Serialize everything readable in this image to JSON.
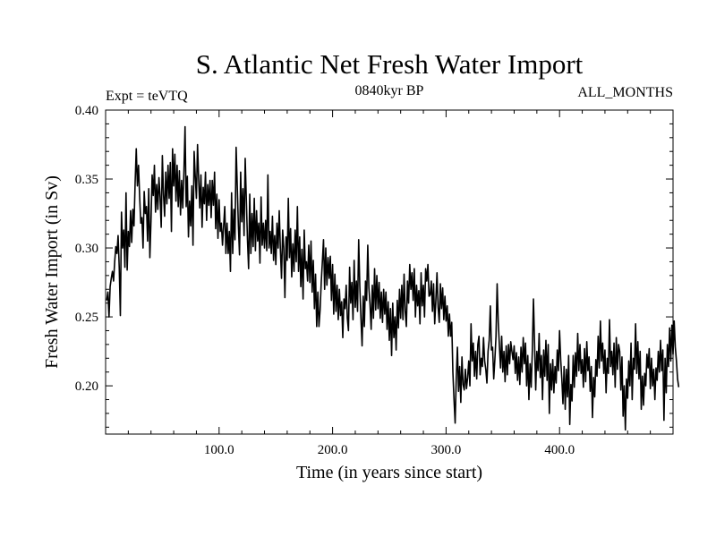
{
  "chart_data": {
    "type": "line",
    "title": "S. Atlantic Net Fresh Water Import",
    "subtitle_left": "Expt = teVTQ",
    "subtitle_center": "0840kyr BP",
    "subtitle_right": "ALL_MONTHS",
    "xlabel": "Time (in years since start)",
    "ylabel": "Fresh Water Import (in Sv)",
    "xlim": [
      0,
      500
    ],
    "ylim": [
      0.165,
      0.4
    ],
    "xticks_major": [
      100,
      200,
      300,
      400
    ],
    "xtick_labels": [
      "100.0",
      "200.0",
      "300.0",
      "400.0"
    ],
    "yticks_major": [
      0.2,
      0.25,
      0.3,
      0.35,
      0.4
    ],
    "ytick_labels": [
      "0.20",
      "0.25",
      "0.30",
      "0.35",
      "0.40"
    ],
    "series": [
      {
        "name": "S. Atlantic net fresh water import",
        "x_start": 1,
        "x_step": 1,
        "values": [
          0.262,
          0.268,
          0.25,
          0.272,
          0.278,
          0.283,
          0.276,
          0.29,
          0.301,
          0.296,
          0.309,
          0.286,
          0.251,
          0.326,
          0.3,
          0.313,
          0.286,
          0.34,
          0.284,
          0.312,
          0.301,
          0.327,
          0.304,
          0.328,
          0.316,
          0.347,
          0.372,
          0.345,
          0.36,
          0.337,
          0.318,
          0.322,
          0.3,
          0.341,
          0.325,
          0.33,
          0.305,
          0.343,
          0.293,
          0.32,
          0.353,
          0.338,
          0.36,
          0.326,
          0.346,
          0.328,
          0.351,
          0.337,
          0.315,
          0.367,
          0.339,
          0.323,
          0.355,
          0.332,
          0.36,
          0.336,
          0.362,
          0.312,
          0.372,
          0.345,
          0.368,
          0.334,
          0.36,
          0.33,
          0.356,
          0.324,
          0.349,
          0.329,
          0.355,
          0.388,
          0.33,
          0.352,
          0.308,
          0.334,
          0.316,
          0.345,
          0.302,
          0.37,
          0.352,
          0.336,
          0.375,
          0.35,
          0.329,
          0.353,
          0.315,
          0.344,
          0.332,
          0.355,
          0.32,
          0.346,
          0.331,
          0.349,
          0.322,
          0.349,
          0.331,
          0.355,
          0.314,
          0.339,
          0.307,
          0.335,
          0.312,
          0.318,
          0.302,
          0.316,
          0.33,
          0.296,
          0.318,
          0.296,
          0.312,
          0.283,
          0.34,
          0.296,
          0.328,
          0.306,
          0.373,
          0.345,
          0.316,
          0.295,
          0.355,
          0.319,
          0.343,
          0.309,
          0.365,
          0.335,
          0.306,
          0.285,
          0.339,
          0.296,
          0.325,
          0.301,
          0.336,
          0.298,
          0.327,
          0.305,
          0.318,
          0.289,
          0.337,
          0.302,
          0.318,
          0.3,
          0.32,
          0.298,
          0.353,
          0.3,
          0.312,
          0.296,
          0.323,
          0.291,
          0.309,
          0.288,
          0.318,
          0.3,
          0.327,
          0.299,
          0.278,
          0.313,
          0.3,
          0.264,
          0.308,
          0.291,
          0.336,
          0.293,
          0.314,
          0.279,
          0.303,
          0.283,
          0.313,
          0.29,
          0.33,
          0.283,
          0.308,
          0.272,
          0.299,
          0.263,
          0.313,
          0.285,
          0.29,
          0.276,
          0.302,
          0.275,
          0.305,
          0.268,
          0.291,
          0.256,
          0.281,
          0.243,
          0.268,
          0.243,
          0.255,
          0.275,
          0.29,
          0.306,
          0.27,
          0.3,
          0.273,
          0.293,
          0.278,
          0.294,
          0.262,
          0.288,
          0.252,
          0.281,
          0.254,
          0.273,
          0.248,
          0.27,
          0.251,
          0.261,
          0.235,
          0.263,
          0.256,
          0.273,
          0.249,
          0.24,
          0.286,
          0.26,
          0.275,
          0.248,
          0.291,
          0.257,
          0.276,
          0.254,
          0.306,
          0.272,
          0.249,
          0.229,
          0.265,
          0.243,
          0.276,
          0.262,
          0.302,
          0.271,
          0.259,
          0.241,
          0.273,
          0.249,
          0.285,
          0.255,
          0.28,
          0.256,
          0.275,
          0.249,
          0.268,
          0.246,
          0.27,
          0.252,
          0.268,
          0.241,
          0.261,
          0.233,
          0.256,
          0.222,
          0.26,
          0.235,
          0.25,
          0.226,
          0.262,
          0.242,
          0.27,
          0.249,
          0.273,
          0.248,
          0.281,
          0.254,
          0.243,
          0.276,
          0.26,
          0.288,
          0.27,
          0.282,
          0.262,
          0.285,
          0.25,
          0.273,
          0.258,
          0.269,
          0.245,
          0.282,
          0.258,
          0.273,
          0.25,
          0.285,
          0.276,
          0.288,
          0.265,
          0.266,
          0.276,
          0.254,
          0.274,
          0.245,
          0.262,
          0.282,
          0.257,
          0.246,
          0.274,
          0.256,
          0.271,
          0.248,
          0.265,
          0.247,
          0.258,
          0.236,
          0.252,
          0.236,
          0.246,
          0.21,
          0.19,
          0.173,
          0.206,
          0.228,
          0.196,
          0.214,
          0.188,
          0.221,
          0.201,
          0.197,
          0.212,
          0.198,
          0.206,
          0.218,
          0.2,
          0.245,
          0.218,
          0.231,
          0.207,
          0.225,
          0.205,
          0.23,
          0.236,
          0.208,
          0.22,
          0.214,
          0.235,
          0.218,
          0.212,
          0.202,
          0.225,
          0.233,
          0.258,
          0.226,
          0.228,
          0.205,
          0.219,
          0.236,
          0.274,
          0.246,
          0.229,
          0.213,
          0.236,
          0.21,
          0.225,
          0.203,
          0.229,
          0.208,
          0.23,
          0.216,
          0.232,
          0.225,
          0.219,
          0.229,
          0.209,
          0.224,
          0.204,
          0.221,
          0.201,
          0.228,
          0.21,
          0.235,
          0.216,
          0.231,
          0.2,
          0.222,
          0.19,
          0.216,
          0.199,
          0.225,
          0.263,
          0.23,
          0.197,
          0.225,
          0.211,
          0.238,
          0.206,
          0.222,
          0.19,
          0.226,
          0.207,
          0.233,
          0.204,
          0.23,
          0.18,
          0.216,
          0.197,
          0.219,
          0.195,
          0.214,
          0.202,
          0.226,
          0.211,
          0.24,
          0.219,
          0.205,
          0.187,
          0.214,
          0.183,
          0.212,
          0.192,
          0.222,
          0.172,
          0.201,
          0.189,
          0.222,
          0.199,
          0.224,
          0.207,
          0.238,
          0.211,
          0.23,
          0.209,
          0.219,
          0.199,
          0.227,
          0.203,
          0.232,
          0.211,
          0.221,
          0.196,
          0.214,
          0.177,
          0.206,
          0.192,
          0.219,
          0.207,
          0.236,
          0.213,
          0.247,
          0.218,
          0.231,
          0.209,
          0.226,
          0.195,
          0.22,
          0.209,
          0.248,
          0.214,
          0.225,
          0.208,
          0.231,
          0.199,
          0.235,
          0.212,
          0.23,
          0.225,
          0.197,
          0.221,
          0.178,
          0.2,
          0.168,
          0.205,
          0.191,
          0.218,
          0.2,
          0.231,
          0.19,
          0.22,
          0.212,
          0.245,
          0.209,
          0.232,
          0.205,
          0.225,
          0.183,
          0.207,
          0.186,
          0.209,
          0.2,
          0.223,
          0.213,
          0.227,
          0.198,
          0.22,
          0.2,
          0.212,
          0.19,
          0.213,
          0.204,
          0.225,
          0.21,
          0.233,
          0.211,
          0.226,
          0.175,
          0.22,
          0.195,
          0.23,
          0.214,
          0.242,
          0.218,
          0.244,
          0.223,
          0.247,
          0.228,
          0.218,
          0.205,
          0.199
        ]
      }
    ]
  }
}
